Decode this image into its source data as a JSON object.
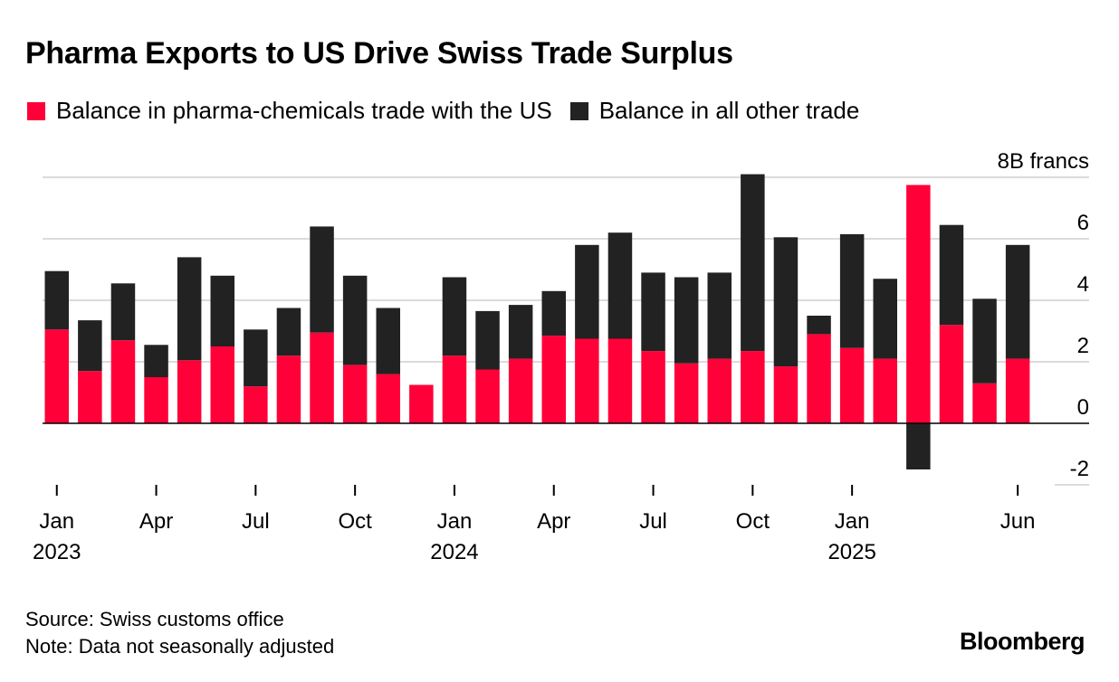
{
  "title": "Pharma Exports to US Drive Swiss Trade Surplus",
  "legend": [
    {
      "label": "Balance in pharma-chemicals trade with the US",
      "color": "#ff0038"
    },
    {
      "label": "Balance in all other trade",
      "color": "#222222"
    }
  ],
  "footer": {
    "source": "Source: Swiss customs office",
    "note": "Note: Data not seasonally adjusted",
    "brand": "Bloomberg"
  },
  "chart_data": {
    "type": "bar",
    "stacked": true,
    "grid": true,
    "legend_position": "top-left",
    "ylabel": "francs",
    "y_unit_suffix": "B francs",
    "ylim": [
      -2.5,
      8.2
    ],
    "y_ticks": [
      -2,
      0,
      2,
      4,
      6,
      8
    ],
    "categories": [
      "2023-01",
      "2023-02",
      "2023-03",
      "2023-04",
      "2023-05",
      "2023-06",
      "2023-07",
      "2023-08",
      "2023-09",
      "2023-10",
      "2023-11",
      "2023-12",
      "2024-01",
      "2024-02",
      "2024-03",
      "2024-04",
      "2024-05",
      "2024-06",
      "2024-07",
      "2024-08",
      "2024-09",
      "2024-10",
      "2024-11",
      "2024-12",
      "2025-01",
      "2025-02",
      "2025-03",
      "2025-04",
      "2025-05",
      "2025-06"
    ],
    "x_ticks": [
      {
        "index": 0,
        "label": "Jan",
        "year": "2023"
      },
      {
        "index": 3,
        "label": "Apr",
        "year": ""
      },
      {
        "index": 6,
        "label": "Jul",
        "year": ""
      },
      {
        "index": 9,
        "label": "Oct",
        "year": ""
      },
      {
        "index": 12,
        "label": "Jan",
        "year": "2024"
      },
      {
        "index": 15,
        "label": "Apr",
        "year": ""
      },
      {
        "index": 18,
        "label": "Jul",
        "year": ""
      },
      {
        "index": 21,
        "label": "Oct",
        "year": ""
      },
      {
        "index": 24,
        "label": "Jan",
        "year": "2025"
      },
      {
        "index": 29,
        "label": "Jun",
        "year": ""
      }
    ],
    "series": [
      {
        "name": "Balance in pharma-chemicals trade with the US",
        "color": "#ff0038",
        "values": [
          3.05,
          1.7,
          2.7,
          1.5,
          2.05,
          2.5,
          1.2,
          2.2,
          2.95,
          1.9,
          1.6,
          1.25,
          2.2,
          1.75,
          2.1,
          2.85,
          2.75,
          2.75,
          2.35,
          1.95,
          2.1,
          2.35,
          1.85,
          2.9,
          2.45,
          2.1,
          7.75,
          3.2,
          1.3,
          2.1
        ]
      },
      {
        "name": "Balance in all other trade",
        "color": "#222222",
        "values": [
          1.9,
          1.65,
          1.85,
          1.05,
          3.35,
          2.3,
          1.85,
          1.55,
          3.45,
          2.9,
          2.15,
          0,
          2.55,
          1.9,
          1.75,
          1.45,
          3.05,
          3.45,
          2.55,
          2.8,
          2.8,
          5.75,
          4.2,
          0.6,
          3.7,
          2.6,
          -1.5,
          3.25,
          2.75,
          3.7
        ]
      }
    ]
  }
}
